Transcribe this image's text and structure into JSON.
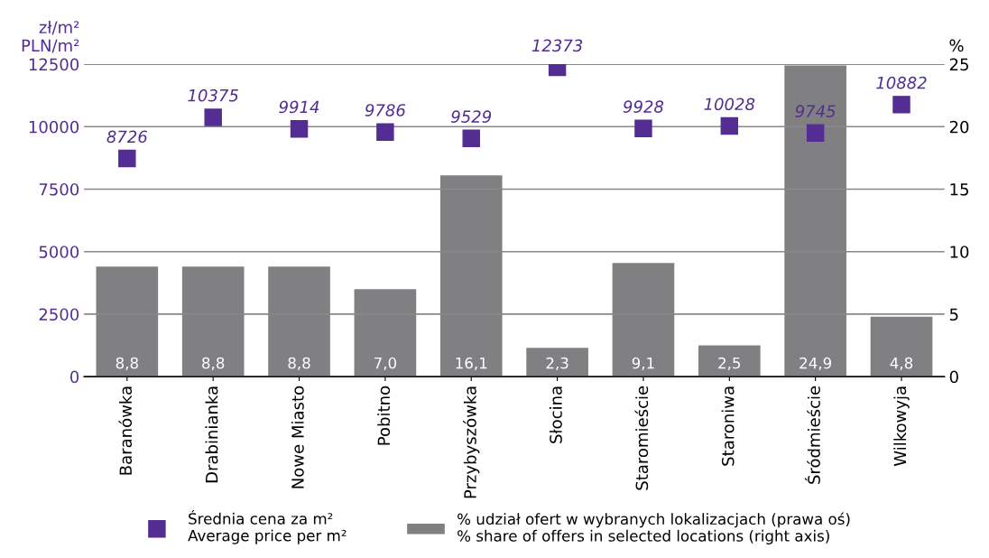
{
  "chart_data": {
    "type": "bar",
    "categories": [
      "Baranówka",
      "Drabinianka",
      "Nowe Miasto",
      "Pobitno",
      "Przybyszówka",
      "Słocina",
      "Staromieście",
      "Staroniwa",
      "Śródmieście",
      "Wilkowyja"
    ],
    "ylabel": "zł/m²\nPLN/m²",
    "y2label": "%",
    "ylim": [
      0,
      12500
    ],
    "yticks": [
      0,
      2500,
      5000,
      7500,
      10000,
      12500
    ],
    "y2lim": [
      0,
      25
    ],
    "y2ticks": [
      0,
      5,
      10,
      15,
      20,
      25
    ],
    "grid": "y",
    "legend": "bottom",
    "series": [
      {
        "name": "Średnia cena za m²\nAverage price per m²",
        "type": "scatter",
        "marker": "square",
        "color": "#532d91",
        "data_labels": true,
        "values": [
          8726,
          10375,
          9914,
          9786,
          9529,
          12373,
          9928,
          10028,
          9745,
          10882
        ]
      },
      {
        "name": "% udział ofert w wybranych lokalizacjach (prawa oś)\n% share of offers in selected locations (right axis)",
        "axis": "y2",
        "color": "#808083",
        "values": [
          8.8,
          8.8,
          8.8,
          7.0,
          16.1,
          2.3,
          9.1,
          2.5,
          24.9,
          4.8
        ],
        "value_labels": [
          "8,8",
          "8,8",
          "8,8",
          "7,0",
          "16,1",
          "2,3",
          "9,1",
          "2,5",
          "24,9",
          "4,8"
        ]
      }
    ]
  }
}
